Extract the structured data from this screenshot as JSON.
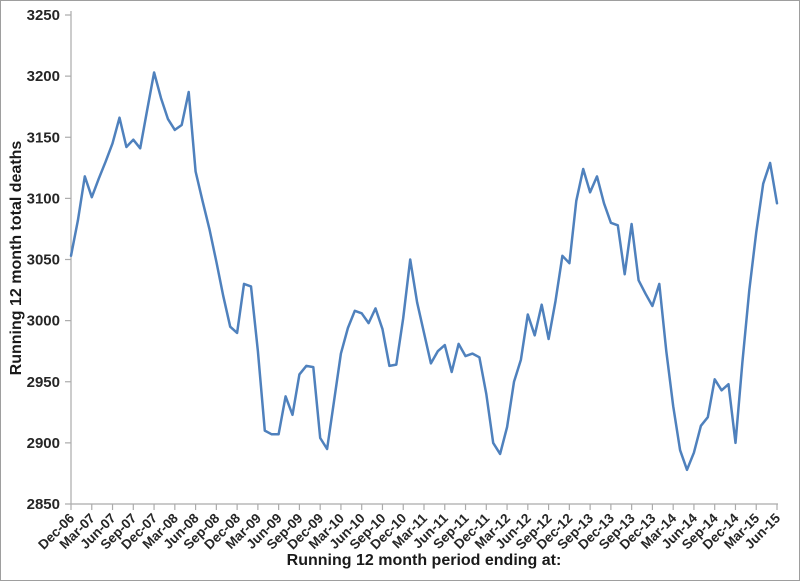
{
  "chart_data": {
    "type": "line",
    "title": "",
    "xlabel": "Running 12 month period ending at:",
    "ylabel": "Running 12 month total deaths",
    "ylim": [
      2850,
      3250
    ],
    "y_tick_step": 50,
    "grid": "off",
    "legend": "none",
    "line_color": "#4F81BD",
    "axis_color": "#ababab",
    "y_ticks": [
      3250,
      3200,
      3150,
      3100,
      3050,
      3000,
      2950,
      2900,
      2850
    ],
    "x_tick_labels": [
      "Dec-06",
      "Mar-07",
      "Jun-07",
      "Sep-07",
      "Dec-07",
      "Mar-08",
      "Jun-08",
      "Sep-08",
      "Dec-08",
      "Mar-09",
      "Jun-09",
      "Sep-09",
      "Dec-09",
      "Mar-10",
      "Jun-10",
      "Sep-10",
      "Dec-10",
      "Mar-11",
      "Jun-11",
      "Sep-11",
      "Dec-11",
      "Mar-12",
      "Jun-12",
      "Sep-12",
      "Dec-12",
      "Sep-13",
      "Dec-13",
      "Sep-13",
      "Dec-13",
      "Mar-14",
      "Jun-14",
      "Sep-14",
      "Dec-14",
      "Mar-15",
      "Jun-15"
    ],
    "x": [
      "Dec-06",
      "Jan-07",
      "Feb-07",
      "Mar-07",
      "Apr-07",
      "May-07",
      "Jun-07",
      "Jul-07",
      "Aug-07",
      "Sep-07",
      "Oct-07",
      "Nov-07",
      "Dec-07",
      "Jan-08",
      "Feb-08",
      "Mar-08",
      "Apr-08",
      "May-08",
      "Jun-08",
      "Jul-08",
      "Aug-08",
      "Sep-08",
      "Oct-08",
      "Nov-08",
      "Dec-08",
      "Jan-09",
      "Feb-09",
      "Mar-09",
      "Apr-09",
      "May-09",
      "Jun-09",
      "Jul-09",
      "Aug-09",
      "Sep-09",
      "Oct-09",
      "Nov-09",
      "Dec-09",
      "Jan-10",
      "Feb-10",
      "Mar-10",
      "Apr-10",
      "May-10",
      "Jun-10",
      "Jul-10",
      "Aug-10",
      "Sep-10",
      "Oct-10",
      "Nov-10",
      "Dec-10",
      "Jan-11",
      "Feb-11",
      "Mar-11",
      "Apr-11",
      "May-11",
      "Jun-11",
      "Jul-11",
      "Aug-11",
      "Sep-11",
      "Oct-11",
      "Nov-11",
      "Dec-11",
      "Jan-12",
      "Feb-12",
      "Mar-12",
      "Apr-12",
      "May-12",
      "Jun-12",
      "Jul-12",
      "Aug-12",
      "Sep-12",
      "Oct-12",
      "Nov-12",
      "Dec-12",
      "Jan-13",
      "Feb-13",
      "Mar-13",
      "Apr-13",
      "May-13",
      "Jun-13",
      "Jul-13",
      "Aug-13",
      "Sep-13",
      "Oct-13",
      "Nov-13",
      "Dec-13",
      "Jan-14",
      "Feb-14",
      "Mar-14",
      "Apr-14",
      "May-14",
      "Jun-14",
      "Jul-14",
      "Aug-14",
      "Sep-14",
      "Oct-14",
      "Nov-14",
      "Dec-14",
      "Jan-15",
      "Feb-15",
      "Mar-15",
      "Apr-15",
      "May-15",
      "Jun-15"
    ],
    "values": [
      3053,
      3082,
      3118,
      3101,
      3116,
      3130,
      3145,
      3166,
      3142,
      3148,
      3141,
      3172,
      3203,
      3182,
      3165,
      3156,
      3160,
      3187,
      3122,
      3098,
      3075,
      3048,
      3020,
      2995,
      2990,
      3030,
      3028,
      2975,
      2910,
      2907,
      2907,
      2938,
      2923,
      2956,
      2963,
      2962,
      2904,
      2895,
      2934,
      2973,
      2994,
      3008,
      3006,
      2998,
      3010,
      2993,
      2963,
      2964,
      3002,
      3050,
      3015,
      2990,
      2965,
      2975,
      2980,
      2958,
      2981,
      2971,
      2973,
      2970,
      2940,
      2900,
      2891,
      2913,
      2950,
      2968,
      3005,
      2988,
      3013,
      2985,
      3016,
      3053,
      3047,
      3098,
      3124,
      3105,
      3118,
      3096,
      3080,
      3078,
      3038,
      3079,
      3033,
      3022,
      3012,
      3030,
      2975,
      2930,
      2894,
      2878,
      2892,
      2914,
      2921,
      2952,
      2943,
      2948,
      2900,
      2966,
      3025,
      3072,
      3112,
      3129,
      3096
    ]
  }
}
